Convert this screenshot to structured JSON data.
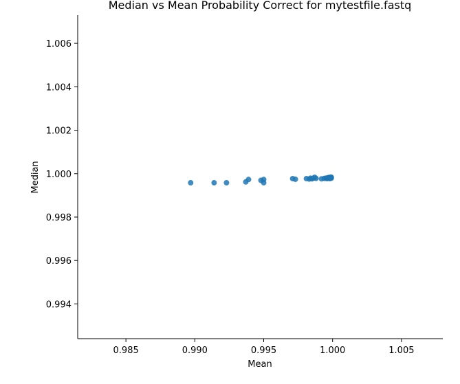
{
  "chart_data": {
    "type": "scatter",
    "title": "Median vs Mean Probability Correct for mytestfile.fastq",
    "xlabel": "Mean",
    "ylabel": "Median",
    "xlim": [
      0.9815,
      1.008
    ],
    "ylim": [
      0.9924,
      1.0073
    ],
    "xticks": [
      0.985,
      0.99,
      0.995,
      1.0,
      1.005
    ],
    "xtick_labels": [
      "0.985",
      "0.990",
      "0.995",
      "1.000",
      "1.005"
    ],
    "yticks": [
      0.994,
      0.996,
      0.998,
      1.0,
      1.002,
      1.004,
      1.006
    ],
    "ytick_labels": [
      "0.994",
      "0.996",
      "0.998",
      "1.000",
      "1.002",
      "1.004",
      "1.006"
    ],
    "grid": false,
    "point_color": "#1f77b4",
    "points": [
      {
        "x": 0.9897,
        "y": 0.99958
      },
      {
        "x": 0.9914,
        "y": 0.99958
      },
      {
        "x": 0.9923,
        "y": 0.99958
      },
      {
        "x": 0.9937,
        "y": 0.99962
      },
      {
        "x": 0.9939,
        "y": 0.99973
      },
      {
        "x": 0.9948,
        "y": 0.99969
      },
      {
        "x": 0.995,
        "y": 0.99973
      },
      {
        "x": 0.995,
        "y": 0.99958
      },
      {
        "x": 0.9971,
        "y": 0.99977
      },
      {
        "x": 0.9973,
        "y": 0.99974
      },
      {
        "x": 0.9981,
        "y": 0.99977
      },
      {
        "x": 0.9983,
        "y": 0.99975
      },
      {
        "x": 0.9984,
        "y": 0.99979
      },
      {
        "x": 0.9985,
        "y": 0.99976
      },
      {
        "x": 0.9986,
        "y": 0.99979
      },
      {
        "x": 0.9987,
        "y": 0.99983
      },
      {
        "x": 0.9988,
        "y": 0.99978
      },
      {
        "x": 0.9992,
        "y": 0.99976
      },
      {
        "x": 0.9994,
        "y": 0.99978
      },
      {
        "x": 0.9995,
        "y": 0.99979
      },
      {
        "x": 0.9996,
        "y": 0.9998
      },
      {
        "x": 0.9996,
        "y": 0.99977
      },
      {
        "x": 0.9997,
        "y": 0.99982
      },
      {
        "x": 0.9997,
        "y": 0.99979
      },
      {
        "x": 0.9998,
        "y": 0.9998
      },
      {
        "x": 0.9998,
        "y": 0.99983
      },
      {
        "x": 0.9998,
        "y": 0.99977
      },
      {
        "x": 0.9999,
        "y": 0.99981
      },
      {
        "x": 0.9999,
        "y": 0.99984
      },
      {
        "x": 0.9999,
        "y": 0.99979
      }
    ]
  }
}
